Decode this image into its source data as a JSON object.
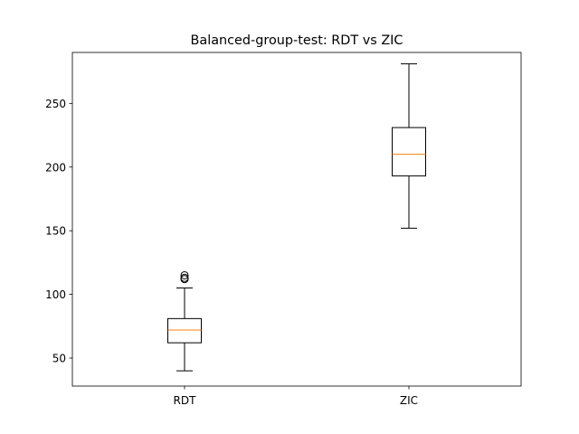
{
  "chart_data": {
    "type": "box",
    "title": "Balanced-group-test: RDT vs ZIC",
    "xlabel": "",
    "ylabel": "",
    "ylim": [
      28,
      290
    ],
    "yticks": [
      50,
      100,
      150,
      200,
      250
    ],
    "grid": false,
    "categories": [
      "RDT",
      "ZIC"
    ],
    "boxes": [
      {
        "name": "RDT",
        "whisker_low": 40,
        "q1": 62,
        "median": 72,
        "q3": 81,
        "whisker_high": 105,
        "outliers": [
          112,
          113,
          115
        ]
      },
      {
        "name": "ZIC",
        "whisker_low": 152,
        "q1": 193,
        "median": 210,
        "q3": 231,
        "whisker_high": 281,
        "outliers": []
      }
    ],
    "colors": {
      "box": "#000000",
      "median": "#ff7f0e",
      "axes": "#000000"
    }
  }
}
